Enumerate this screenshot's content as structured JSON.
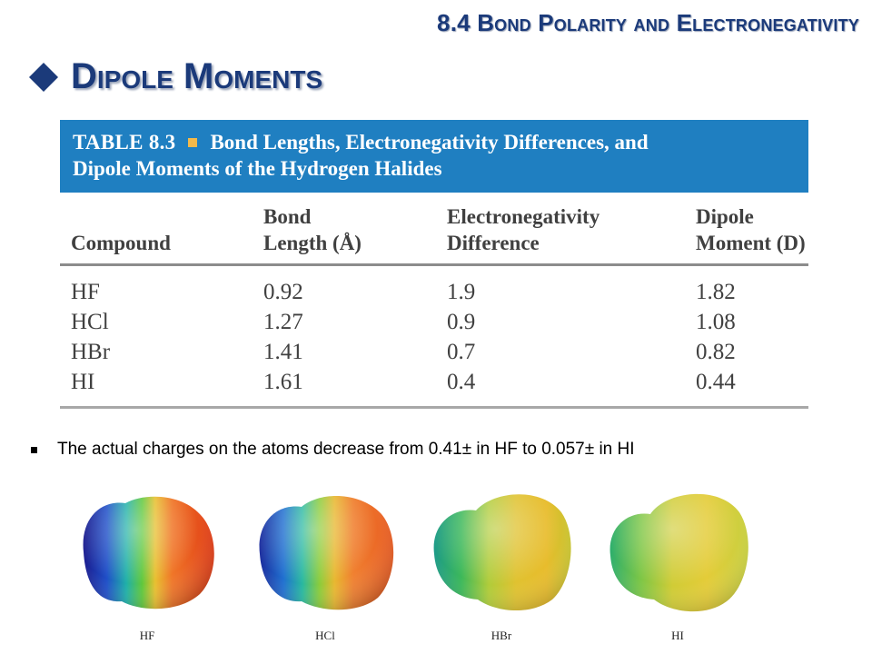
{
  "section_title": "8.4 Bond Polarity and Electronegativity",
  "slide_title": "Dipole Moments",
  "table": {
    "label": "TABLE 8.3",
    "caption_line1": "Bond Lengths, Electronegativity Differences, and",
    "caption_line2": "Dipole Moments of the Hydrogen Halides",
    "headers": [
      {
        "line1": "",
        "line2": "Compound"
      },
      {
        "line1": "Bond",
        "line2": "Length (Å)"
      },
      {
        "line1": "Electronegativity",
        "line2": "Difference"
      },
      {
        "line1": "Dipole",
        "line2": "Moment (D)"
      }
    ],
    "rows": [
      [
        "HF",
        "0.92",
        "1.9",
        "1.82"
      ],
      [
        "HCl",
        "1.27",
        "0.9",
        "1.08"
      ],
      [
        "HBr",
        "1.41",
        "0.7",
        "0.82"
      ],
      [
        "HI",
        "1.61",
        "0.4",
        "0.44"
      ]
    ]
  },
  "bullet": "The actual charges on the atoms decrease from 0.41± in HF to 0.057± in HI",
  "molecules": [
    "HF",
    "HCl",
    "HBr",
    "HI"
  ],
  "colors": {
    "title_blue": "#1b3a7a",
    "banner_blue": "#1f7fc1",
    "banner_square": "#f3b94a"
  }
}
